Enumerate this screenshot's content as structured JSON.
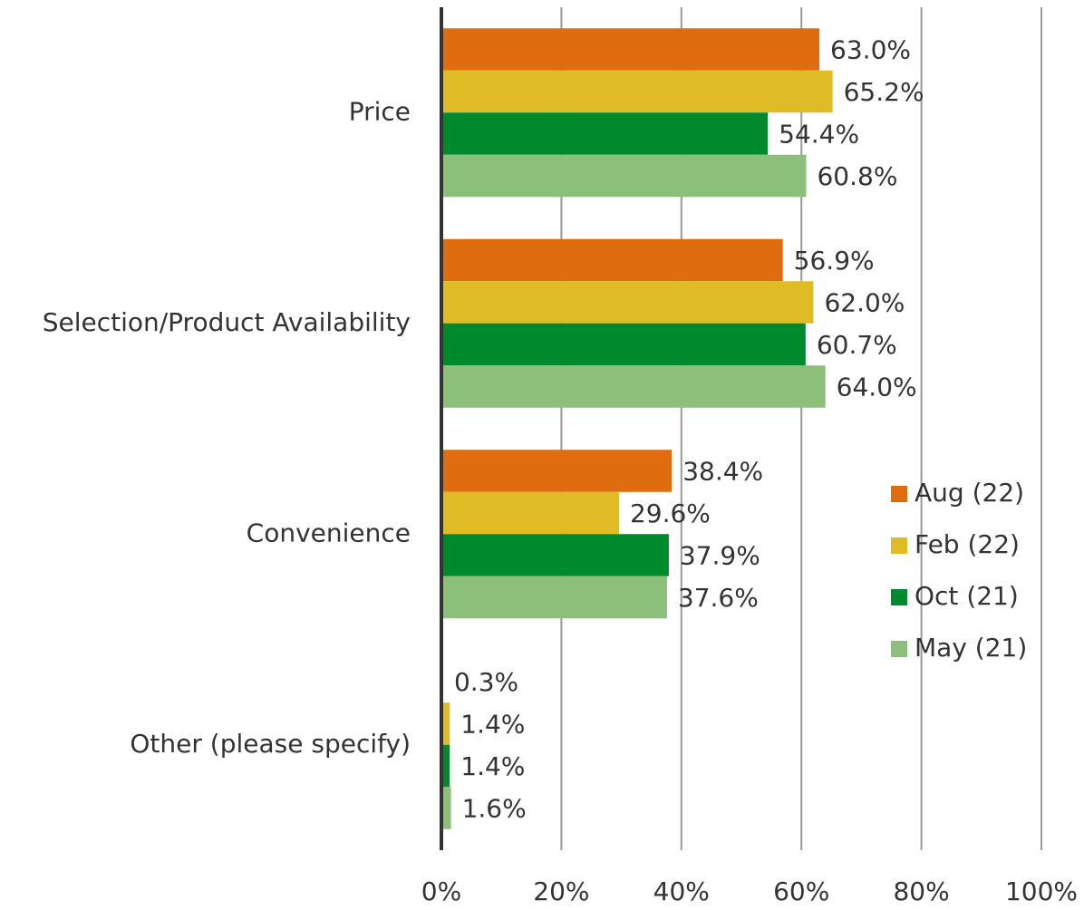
{
  "chart_data": {
    "type": "bar",
    "orientation": "horizontal",
    "categories": [
      "Price",
      "Selection/Product Availability",
      "Convenience",
      "Other (please specify)"
    ],
    "series": [
      {
        "name": "Aug (22)",
        "color": "#e06c10",
        "values": [
          63.0,
          56.9,
          38.4,
          0.3
        ],
        "value_labels": [
          "63.0%",
          "56.9%",
          "38.4%",
          "0.3%"
        ]
      },
      {
        "name": "Feb (22)",
        "color": "#dfbb25",
        "values": [
          65.2,
          62.0,
          29.6,
          1.4
        ],
        "value_labels": [
          "65.2%",
          "62.0%",
          "29.6%",
          "1.4%"
        ]
      },
      {
        "name": "Oct (21)",
        "color": "#008a2e",
        "values": [
          54.4,
          60.7,
          37.9,
          1.4
        ],
        "value_labels": [
          "54.4%",
          "60.7%",
          "37.9%",
          "1.4%"
        ]
      },
      {
        "name": "May (21)",
        "color": "#8cbf7a",
        "values": [
          60.8,
          64.0,
          37.6,
          1.6
        ],
        "value_labels": [
          "60.8%",
          "64.0%",
          "37.6%",
          "1.6%"
        ]
      }
    ],
    "xlim": [
      0,
      100
    ],
    "xticks": [
      {
        "value": 0,
        "label": "0%"
      },
      {
        "value": 20,
        "label": "20%"
      },
      {
        "value": 40,
        "label": "40%"
      },
      {
        "value": 60,
        "label": "60%"
      },
      {
        "value": 80,
        "label": "80%"
      },
      {
        "value": 100,
        "label": "100%"
      }
    ],
    "grid": true,
    "legend": "right"
  }
}
